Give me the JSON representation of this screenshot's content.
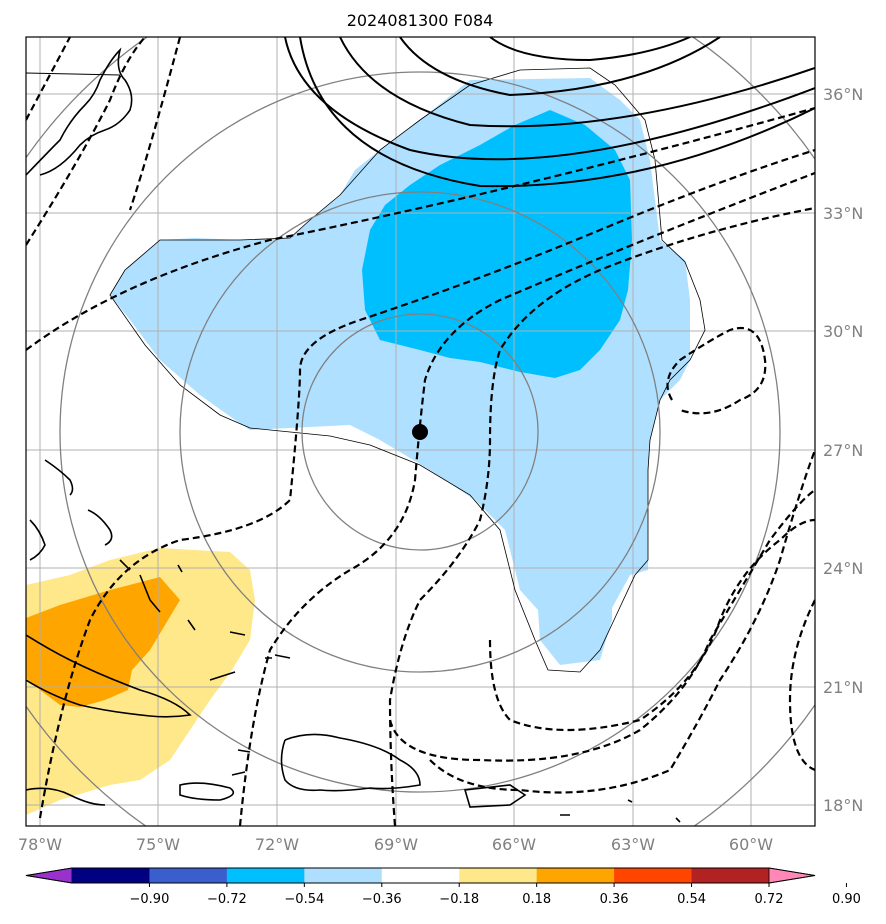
{
  "title": "2024081300 F084",
  "lon_labels": [
    "78°W",
    "75°W",
    "72°W",
    "69°W",
    "66°W",
    "63°W",
    "60°W"
  ],
  "lat_labels": [
    "36°N",
    "33°N",
    "30°N",
    "27°N",
    "24°N",
    "21°N",
    "18°N"
  ],
  "colorbar": {
    "ticks": [
      "−0.90",
      "−0.72",
      "−0.54",
      "−0.36",
      "−0.18",
      "0.18",
      "0.36",
      "0.54",
      "0.72",
      "0.90"
    ],
    "colors": [
      "#9932cc",
      "#000080",
      "#3a5fcd",
      "#00bfff",
      "#afdfff",
      "#ffffff",
      "#ffe88a",
      "#ffa500",
      "#ff4500",
      "#b22222",
      "#ff88b8"
    ]
  },
  "colors": {
    "light_blue": "#b0e0ff",
    "deep_sky_blue": "#00bfff",
    "light_yellow": "#ffe88a",
    "orange": "#ffa500",
    "grid": "#b0b0b0",
    "range_ring": "#808080"
  },
  "marker": {
    "lon": -68.4,
    "lat": 27.5
  }
}
